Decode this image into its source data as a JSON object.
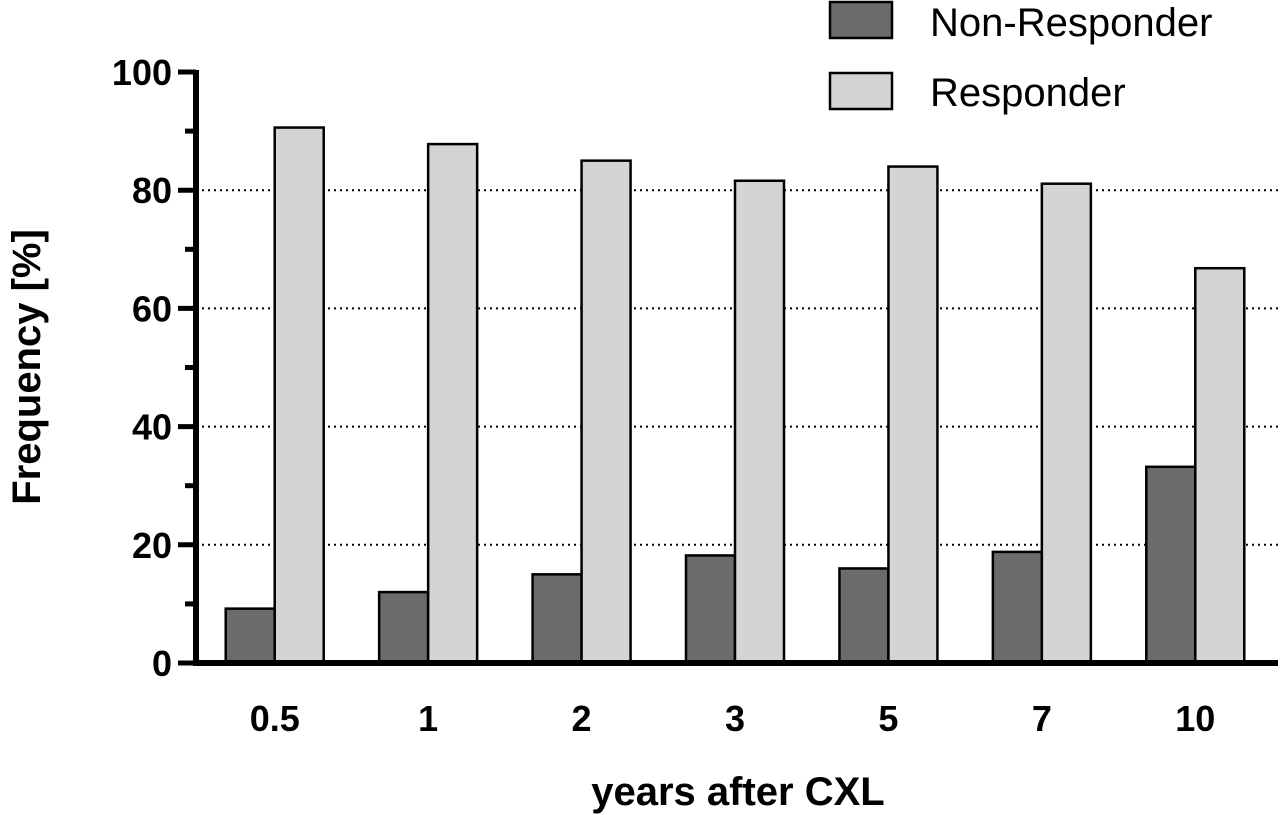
{
  "chart_data": {
    "type": "bar",
    "categories": [
      "0.5",
      "1",
      "2",
      "3",
      "5",
      "7",
      "10"
    ],
    "series": [
      {
        "name": "Non-Responder",
        "color": "#6b6b6b",
        "values": [
          9.2,
          12.0,
          15.0,
          18.2,
          16.0,
          18.8,
          33.2
        ]
      },
      {
        "name": "Responder",
        "color": "#d4d4d4",
        "values": [
          90.6,
          87.8,
          85.0,
          81.6,
          84.0,
          81.1,
          66.8
        ]
      }
    ],
    "xlabel": "years after CXL",
    "ylabel": "Frequency [%]",
    "ylim": [
      0,
      100
    ],
    "yticks": [
      "0",
      "20",
      "40",
      "60",
      "80",
      "100"
    ],
    "grid": "horizontal dotted at 20, 40, 60, 80",
    "legend_position": "top-right"
  }
}
